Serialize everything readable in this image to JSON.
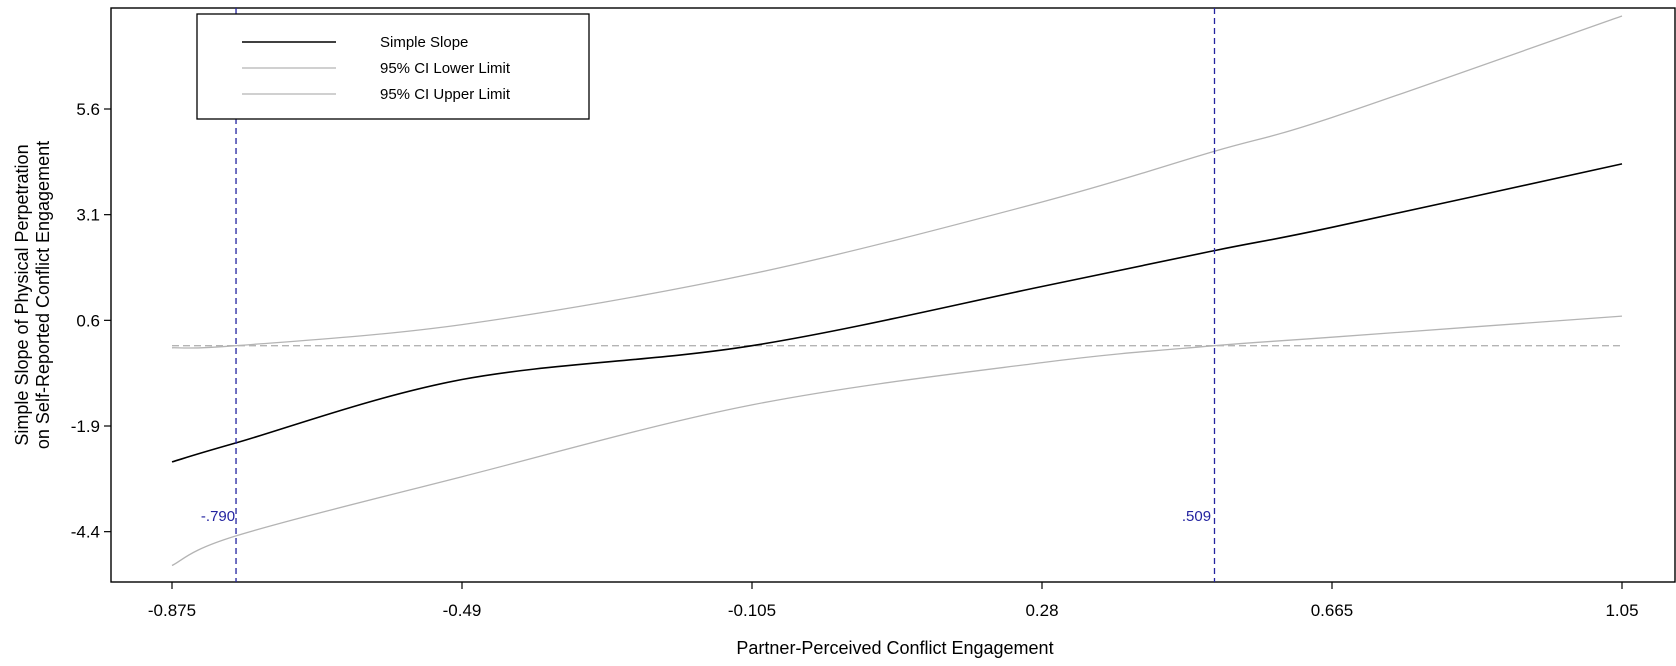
{
  "chart_data": {
    "type": "line",
    "xlabel": "Partner-Perceived Conflict Engagement",
    "ylabel_lines": [
      "Simple Slope of Physical Perpetration",
      "on Self-Reported Conflict Engagement"
    ],
    "xlim": [
      -0.875,
      1.05
    ],
    "ylim": [
      -5.5,
      7.9
    ],
    "x_ticks": [
      -0.875,
      -0.49,
      -0.105,
      0.28,
      0.665,
      1.05
    ],
    "x_tick_labels": [
      "-0.875",
      "-0.49",
      "-0.105",
      "0.28",
      "0.665",
      "1.05"
    ],
    "y_ticks": [
      -4.4,
      -1.9,
      0.6,
      3.1,
      5.6
    ],
    "y_tick_labels": [
      "-4.4",
      "-1.9",
      "0.6",
      "3.1",
      "5.6"
    ],
    "grid": false,
    "legend": {
      "position": "top-left",
      "entries": [
        "Simple Slope",
        "95% CI Lower Limit",
        "95% CI Upper Limit"
      ]
    },
    "x": [
      -0.875,
      -0.79,
      -0.49,
      -0.105,
      0.28,
      0.509,
      0.665,
      1.05
    ],
    "series": [
      {
        "name": "Simple Slope",
        "color": "#000000",
        "values": [
          -2.75,
          -2.3,
          -0.8,
          0.0,
          1.4,
          2.25,
          2.8,
          4.3
        ]
      },
      {
        "name": "95% CI Lower Limit",
        "color": "#b4b4b4",
        "values": [
          -5.2,
          -4.5,
          -3.1,
          -1.4,
          -0.4,
          0.0,
          0.2,
          0.7
        ]
      },
      {
        "name": "95% CI Upper Limit",
        "color": "#b4b4b4",
        "values": [
          -0.05,
          0.0,
          0.5,
          1.7,
          3.4,
          4.6,
          5.4,
          7.8
        ]
      }
    ],
    "reference_line": {
      "y": 0.0,
      "color": "#b4b4b4",
      "style": "dashed"
    },
    "jn_points": [
      {
        "x": -0.79,
        "label": "-.790",
        "label_y": -4.0,
        "color": "#2323a0"
      },
      {
        "x": 0.509,
        "label": ".509",
        "label_y": -4.0,
        "color": "#2323a0"
      }
    ]
  }
}
